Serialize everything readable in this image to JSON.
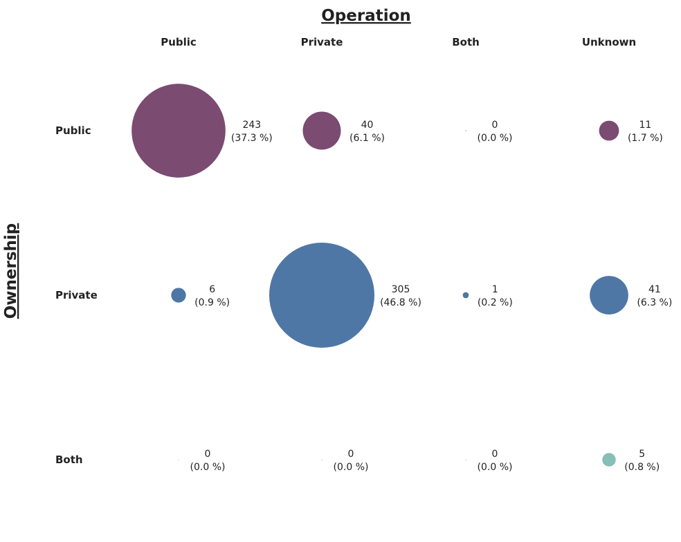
{
  "chart_data": {
    "type": "bubble-matrix",
    "title": "Operation",
    "ylabel": "Ownership",
    "columns": [
      "Public",
      "Private",
      "Both",
      "Unknown"
    ],
    "rows": [
      {
        "name": "Public",
        "color": "#7b4b72",
        "cells": [
          {
            "count": "243",
            "pct": "(37.3 %)",
            "value": 243
          },
          {
            "count": "40",
            "pct": "(6.1 %)",
            "value": 40
          },
          {
            "count": "0",
            "pct": "(0.0 %)",
            "value": 0
          },
          {
            "count": "11",
            "pct": "(1.7 %)",
            "value": 11
          }
        ]
      },
      {
        "name": "Private",
        "color": "#4e77a6",
        "cells": [
          {
            "count": "6",
            "pct": "(0.9 %)",
            "value": 6
          },
          {
            "count": "305",
            "pct": "(46.8 %)",
            "value": 305
          },
          {
            "count": "1",
            "pct": "(0.2 %)",
            "value": 1
          },
          {
            "count": "41",
            "pct": "(6.3 %)",
            "value": 41
          }
        ]
      },
      {
        "name": "Both",
        "color": "#86bfb7",
        "cells": [
          {
            "count": "0",
            "pct": "(0.0 %)",
            "value": 0
          },
          {
            "count": "0",
            "pct": "(0.0 %)",
            "value": 0
          },
          {
            "count": "0",
            "pct": "(0.0 %)",
            "value": 0
          },
          {
            "count": "5",
            "pct": "(0.8 %)",
            "value": 5
          }
        ]
      }
    ]
  }
}
